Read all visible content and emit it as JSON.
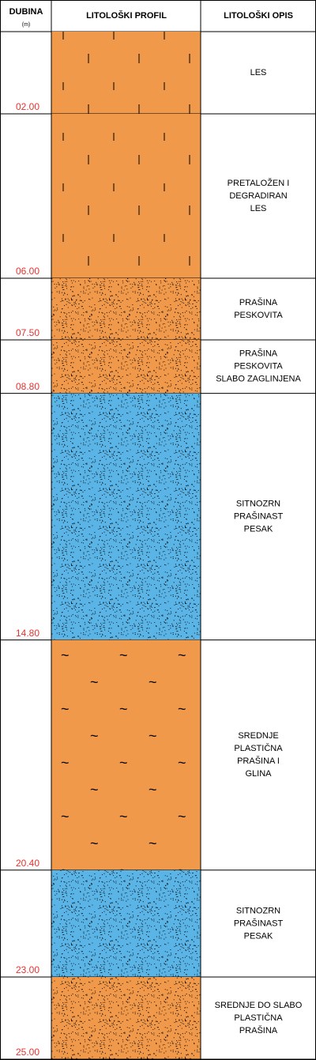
{
  "header": {
    "depth": "DUBINA",
    "unit": "(m)",
    "profile": "LITOLOŠKI PROFIL",
    "description": "LITOLOŠKI OPIS"
  },
  "layers": [
    {
      "depth": "02.00",
      "description": [
        "LES"
      ],
      "color": "#f0994a",
      "pattern": "ticks"
    },
    {
      "depth": "06.00",
      "description": [
        "PRETALOŽEN I",
        "DEGRADIRAN",
        "LES"
      ],
      "color": "#f0994a",
      "pattern": "ticks"
    },
    {
      "depth": "07.50",
      "description": [
        "PRAŠINA",
        "PESKOVITA"
      ],
      "color": "#f0994a",
      "pattern": "dots"
    },
    {
      "depth": "08.80",
      "description": [
        "PRAŠINA",
        "PESKOVITA",
        "SLABO ZAGLINJENA"
      ],
      "color": "#f0994a",
      "pattern": "dots"
    },
    {
      "depth": "14.80",
      "description": [
        "SITNOZRN",
        "PRAŠINAST",
        "PESAK"
      ],
      "color": "#5ab4e6",
      "pattern": "dots"
    },
    {
      "depth": "20.40",
      "description": [
        "SREDNJE",
        "PLASTIČNA",
        "PRAŠINA I",
        "GLINA"
      ],
      "color": "#f0994a",
      "pattern": "tilde"
    },
    {
      "depth": "23.00",
      "description": [
        "SITNOZRN",
        "PRAŠINAST",
        "PESAK"
      ],
      "color": "#5ab4e6",
      "pattern": "dots"
    },
    {
      "depth": "25.00",
      "description": [
        "SREDNJE DO SLABO",
        "PLASTIČNA",
        "PRAŠINA"
      ],
      "color": "#f0994a",
      "pattern": "dots"
    }
  ]
}
